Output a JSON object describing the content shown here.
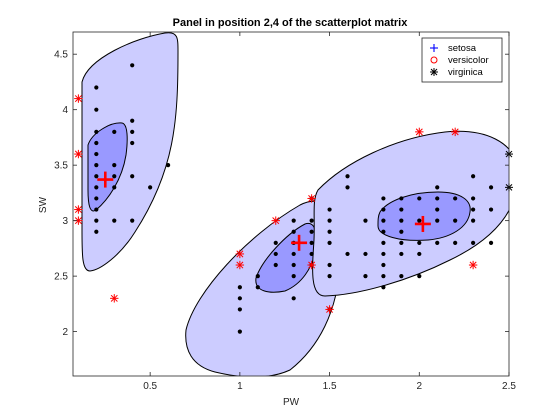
{
  "chart_data": {
    "type": "scatter",
    "title": "Panel in position 2,4 of the scatterplot matrix",
    "xlabel": "PW",
    "ylabel": "SW",
    "xlim": [
      0.07,
      2.5
    ],
    "ylim": [
      1.6,
      4.7
    ],
    "xticks": [
      0.5,
      1,
      1.5,
      2,
      2.5
    ],
    "xtick_labels": [
      "0.5",
      "1",
      "1.5",
      "2",
      "2.5"
    ],
    "yticks": [
      2,
      2.5,
      3,
      3.5,
      4,
      4.5
    ],
    "ytick_labels": [
      "2",
      "2.5",
      "3",
      "3.5",
      "4",
      "4.5"
    ],
    "grid": false,
    "legend_position": "top-right",
    "legend": [
      {
        "label": "setosa",
        "marker": "plus",
        "color": "#0000ff"
      },
      {
        "label": "versicolor",
        "marker": "circle",
        "color": "#ff0000"
      },
      {
        "label": "virginica",
        "marker": "asterisk",
        "color": "#000000"
      }
    ],
    "colors": {
      "points": "#000000",
      "outliers": "#ff0000",
      "centers": "#ff0000",
      "outer_region": "#ccccff",
      "inner_region": "#9999ff",
      "region_edge": "#000000"
    },
    "points": [
      {
        "x": 0.2,
        "y": 2.9
      },
      {
        "x": 0.2,
        "y": 3.0
      },
      {
        "x": 0.2,
        "y": 3.1
      },
      {
        "x": 0.2,
        "y": 3.2
      },
      {
        "x": 0.2,
        "y": 3.3
      },
      {
        "x": 0.2,
        "y": 3.4
      },
      {
        "x": 0.2,
        "y": 3.5
      },
      {
        "x": 0.2,
        "y": 3.6
      },
      {
        "x": 0.2,
        "y": 3.7
      },
      {
        "x": 0.2,
        "y": 3.8
      },
      {
        "x": 0.2,
        "y": 4.0
      },
      {
        "x": 0.2,
        "y": 4.2
      },
      {
        "x": 0.3,
        "y": 3.0
      },
      {
        "x": 0.3,
        "y": 3.3
      },
      {
        "x": 0.3,
        "y": 3.4
      },
      {
        "x": 0.3,
        "y": 3.5
      },
      {
        "x": 0.3,
        "y": 3.8
      },
      {
        "x": 0.4,
        "y": 3.0
      },
      {
        "x": 0.4,
        "y": 3.4
      },
      {
        "x": 0.4,
        "y": 3.7
      },
      {
        "x": 0.4,
        "y": 3.8
      },
      {
        "x": 0.4,
        "y": 3.9
      },
      {
        "x": 0.4,
        "y": 4.4
      },
      {
        "x": 0.5,
        "y": 3.3
      },
      {
        "x": 0.6,
        "y": 3.5
      },
      {
        "x": 1.0,
        "y": 2.0
      },
      {
        "x": 1.0,
        "y": 2.2
      },
      {
        "x": 1.0,
        "y": 2.3
      },
      {
        "x": 1.0,
        "y": 2.4
      },
      {
        "x": 1.1,
        "y": 2.4
      },
      {
        "x": 1.1,
        "y": 2.5
      },
      {
        "x": 1.2,
        "y": 2.6
      },
      {
        "x": 1.2,
        "y": 2.7
      },
      {
        "x": 1.2,
        "y": 2.8
      },
      {
        "x": 1.3,
        "y": 2.3
      },
      {
        "x": 1.3,
        "y": 2.5
      },
      {
        "x": 1.3,
        "y": 2.6
      },
      {
        "x": 1.3,
        "y": 2.7
      },
      {
        "x": 1.3,
        "y": 2.8
      },
      {
        "x": 1.3,
        "y": 2.9
      },
      {
        "x": 1.3,
        "y": 3.0
      },
      {
        "x": 1.4,
        "y": 2.6
      },
      {
        "x": 1.4,
        "y": 2.7
      },
      {
        "x": 1.4,
        "y": 2.8
      },
      {
        "x": 1.4,
        "y": 2.9
      },
      {
        "x": 1.4,
        "y": 3.0
      },
      {
        "x": 1.5,
        "y": 2.2
      },
      {
        "x": 1.5,
        "y": 2.5
      },
      {
        "x": 1.5,
        "y": 2.6
      },
      {
        "x": 1.5,
        "y": 2.8
      },
      {
        "x": 1.5,
        "y": 2.9
      },
      {
        "x": 1.5,
        "y": 3.0
      },
      {
        "x": 1.5,
        "y": 3.1
      },
      {
        "x": 1.6,
        "y": 3.3
      },
      {
        "x": 1.6,
        "y": 3.4
      },
      {
        "x": 1.4,
        "y": 3.2
      },
      {
        "x": 1.7,
        "y": 2.5
      },
      {
        "x": 1.7,
        "y": 3.0
      },
      {
        "x": 1.8,
        "y": 2.5
      },
      {
        "x": 1.8,
        "y": 2.7
      },
      {
        "x": 1.8,
        "y": 2.8
      },
      {
        "x": 1.8,
        "y": 2.9
      },
      {
        "x": 1.8,
        "y": 3.0
      },
      {
        "x": 1.8,
        "y": 3.1
      },
      {
        "x": 1.8,
        "y": 3.2
      },
      {
        "x": 1.9,
        "y": 2.5
      },
      {
        "x": 1.9,
        "y": 2.7
      },
      {
        "x": 1.9,
        "y": 2.8
      },
      {
        "x": 1.9,
        "y": 3.0
      },
      {
        "x": 1.9,
        "y": 3.1
      },
      {
        "x": 2.0,
        "y": 2.5
      },
      {
        "x": 2.0,
        "y": 2.8
      },
      {
        "x": 2.0,
        "y": 3.0
      },
      {
        "x": 2.0,
        "y": 3.2
      },
      {
        "x": 2.1,
        "y": 2.8
      },
      {
        "x": 2.1,
        "y": 3.0
      },
      {
        "x": 2.1,
        "y": 3.1
      },
      {
        "x": 2.1,
        "y": 3.3
      },
      {
        "x": 2.2,
        "y": 2.8
      },
      {
        "x": 2.2,
        "y": 3.2
      },
      {
        "x": 2.3,
        "y": 2.8
      },
      {
        "x": 2.3,
        "y": 3.0
      },
      {
        "x": 2.3,
        "y": 3.1
      },
      {
        "x": 2.3,
        "y": 3.2
      },
      {
        "x": 2.3,
        "y": 3.4
      },
      {
        "x": 2.4,
        "y": 2.8
      },
      {
        "x": 2.4,
        "y": 3.1
      },
      {
        "x": 1.6,
        "y": 2.7
      },
      {
        "x": 1.7,
        "y": 2.7
      },
      {
        "x": 1.8,
        "y": 2.6
      },
      {
        "x": 2.0,
        "y": 2.7
      },
      {
        "x": 1.9,
        "y": 2.9
      },
      {
        "x": 1.8,
        "y": 2.4
      },
      {
        "x": 1.9,
        "y": 3.2
      },
      {
        "x": 2.2,
        "y": 3.0
      },
      {
        "x": 2.4,
        "y": 3.3
      },
      {
        "x": 2.1,
        "y": 3.2
      }
    ],
    "outliers": [
      {
        "x": 0.1,
        "y": 3.0
      },
      {
        "x": 0.1,
        "y": 3.1
      },
      {
        "x": 0.1,
        "y": 3.6
      },
      {
        "x": 0.1,
        "y": 4.1
      },
      {
        "x": 0.3,
        "y": 2.3
      },
      {
        "x": 1.0,
        "y": 2.6
      },
      {
        "x": 1.0,
        "y": 2.7
      },
      {
        "x": 1.2,
        "y": 3.0
      },
      {
        "x": 1.4,
        "y": 3.2
      },
      {
        "x": 1.4,
        "y": 2.6
      },
      {
        "x": 1.5,
        "y": 2.2
      },
      {
        "x": 2.0,
        "y": 3.8
      },
      {
        "x": 2.2,
        "y": 3.8
      },
      {
        "x": 2.3,
        "y": 2.6
      }
    ],
    "edge_markers": [
      {
        "x": 2.5,
        "y": 3.6
      },
      {
        "x": 2.5,
        "y": 3.3
      }
    ],
    "centers": [
      {
        "x": 0.25,
        "y": 3.37
      },
      {
        "x": 1.33,
        "y": 2.8
      },
      {
        "x": 2.02,
        "y": 2.97
      }
    ]
  }
}
